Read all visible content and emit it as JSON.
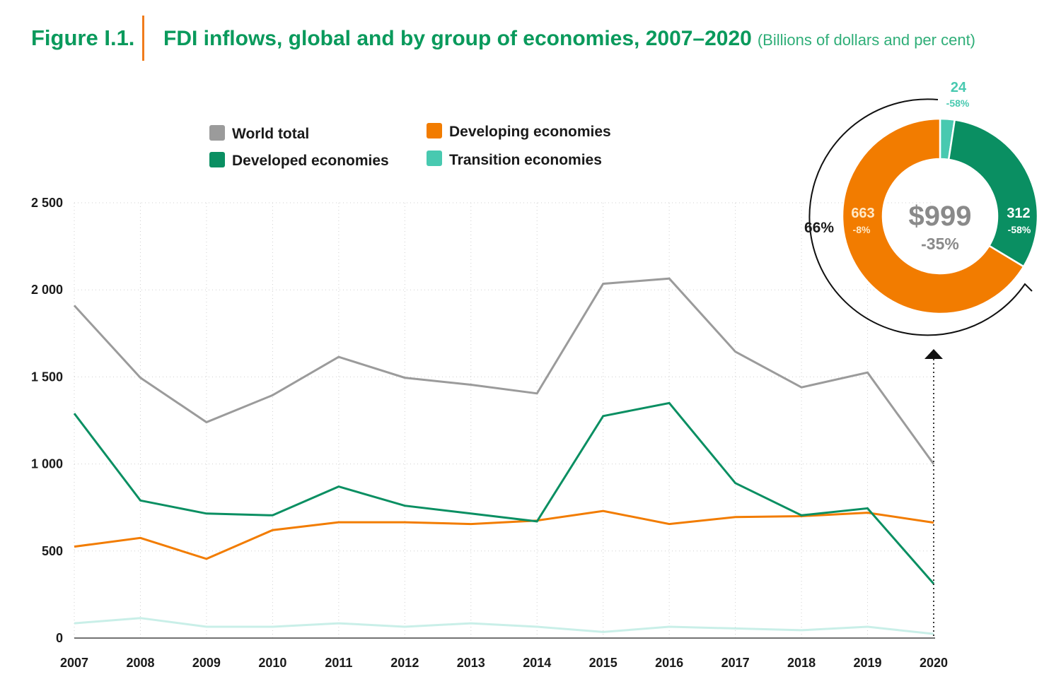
{
  "title": {
    "label": "Figure I.1.",
    "main": "FDI inflows, global and by group of economies, 2007–2020",
    "subtitle": "(Billions of dollars and per cent)"
  },
  "colors": {
    "accent": "#0a9a5c",
    "divider": "#f07c1c",
    "world": "#9b9b9b",
    "developed": "#0a8f62",
    "developing": "#f27c00",
    "transition": "#48c9b0",
    "transition_line": "#c9efe8"
  },
  "chart_data": {
    "type": "line",
    "title": "FDI inflows, global and by group of economies, 2007–2020",
    "xlabel": "",
    "ylabel": "Billions of dollars",
    "ylim": [
      0,
      2500
    ],
    "yticks": [
      0,
      500,
      1000,
      1500,
      2000,
      2500
    ],
    "ytick_labels": [
      "0",
      "500",
      "1 000",
      "1 500",
      "2 000",
      "2 500"
    ],
    "grid": true,
    "legend_position": "top",
    "categories": [
      "2007",
      "2008",
      "2009",
      "2010",
      "2011",
      "2012",
      "2013",
      "2014",
      "2015",
      "2016",
      "2017",
      "2018",
      "2019",
      "2020"
    ],
    "series": [
      {
        "name": "World total",
        "color_key": "world",
        "values": [
          1910,
          1495,
          1240,
          1395,
          1615,
          1495,
          1455,
          1405,
          2035,
          2065,
          1645,
          1440,
          1525,
          999
        ]
      },
      {
        "name": "Developed economies",
        "color_key": "developed",
        "values": [
          1290,
          790,
          715,
          705,
          870,
          760,
          715,
          670,
          1275,
          1350,
          890,
          705,
          745,
          312
        ]
      },
      {
        "name": "Developing economies",
        "color_key": "developing",
        "values": [
          525,
          575,
          455,
          620,
          665,
          665,
          655,
          675,
          730,
          655,
          695,
          700,
          720,
          663
        ]
      },
      {
        "name": "Transition economies",
        "color_key": "transition_line",
        "values": [
          85,
          115,
          65,
          65,
          85,
          65,
          85,
          65,
          35,
          65,
          55,
          45,
          65,
          24
        ]
      }
    ],
    "donut_2020": {
      "total_label": "$999",
      "total_change": "-35%",
      "developing_share_label": "66%",
      "slices": [
        {
          "name": "Transition economies",
          "value": 24,
          "value_label": "24",
          "change": "-58%",
          "color_key": "transition"
        },
        {
          "name": "Developed economies",
          "value": 312,
          "value_label": "312",
          "change": "-58%",
          "color_key": "developed"
        },
        {
          "name": "Developing economies",
          "value": 663,
          "value_label": "663",
          "change": "-8%",
          "color_key": "developing"
        }
      ]
    }
  }
}
